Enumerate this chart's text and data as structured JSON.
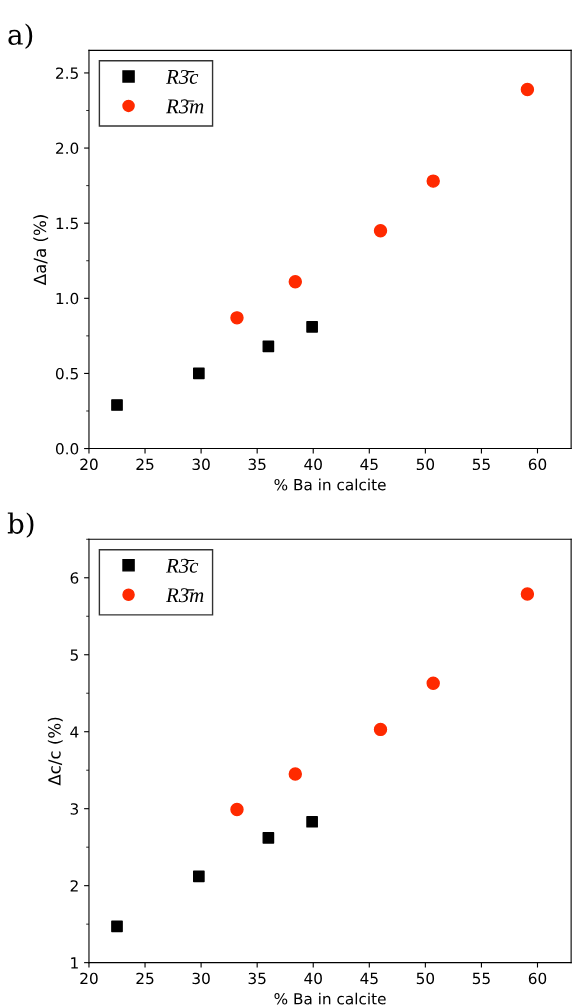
{
  "chart_data": [
    {
      "type": "scatter",
      "title": "a)",
      "xlabel": "% Ba in calcite",
      "ylabel": "Δa/a (%)",
      "xlim": [
        20,
        63
      ],
      "xticks": [
        20,
        25,
        30,
        35,
        40,
        45,
        50,
        55,
        60
      ],
      "ylim": [
        0,
        2.65
      ],
      "yticks": [
        {
          "value": 0,
          "label": "0.0"
        },
        0.5,
        {
          "value": 1,
          "label": "1.0"
        },
        1.5,
        {
          "value": 2,
          "label": "2.0"
        },
        2.5
      ],
      "legend": "top left",
      "grid": false,
      "series": [
        {
          "name": "R3̄c",
          "color": "#000000",
          "marker": "square",
          "x": [
            22.5,
            29.8,
            36.0,
            39.9
          ],
          "values": [
            0.29,
            0.5,
            0.68,
            0.81
          ]
        },
        {
          "name": "R3̄m",
          "color": "#ff2a00",
          "marker": "circle",
          "x": [
            33.2,
            38.4,
            46.0,
            50.7,
            59.1
          ],
          "values": [
            0.87,
            1.11,
            1.45,
            1.78,
            2.39
          ]
        }
      ]
    },
    {
      "type": "scatter",
      "title": "b)",
      "xlabel": "% Ba in calcite",
      "ylabel": "Δc/c (%)",
      "xlim": [
        20,
        63
      ],
      "xticks": [
        20,
        25,
        30,
        35,
        40,
        45,
        50,
        55,
        60
      ],
      "ylim": [
        1,
        6.5
      ],
      "yticks": [
        1,
        2,
        3,
        4,
        5,
        6
      ],
      "legend": "top left",
      "grid": false,
      "series": [
        {
          "name": "R3̄c",
          "color": "#000000",
          "marker": "square",
          "x": [
            22.5,
            29.8,
            36.0,
            39.9
          ],
          "values": [
            1.47,
            2.12,
            2.62,
            2.83
          ]
        },
        {
          "name": "R3̄m",
          "color": "#ff2a00",
          "marker": "circle",
          "x": [
            33.2,
            38.4,
            46.0,
            50.7,
            59.1
          ],
          "values": [
            2.99,
            3.45,
            4.03,
            4.63,
            5.79
          ]
        }
      ]
    }
  ]
}
